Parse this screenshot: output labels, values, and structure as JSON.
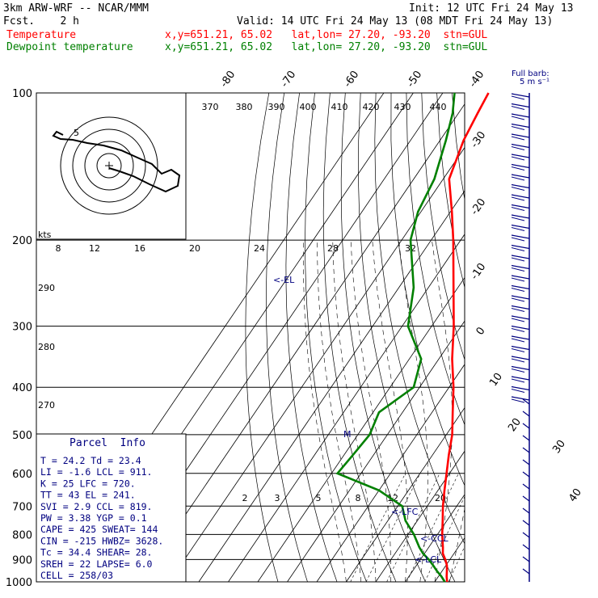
{
  "header": {
    "model": "3km ARW-WRF -- NCAR/MMM",
    "init": "Init: 12 UTC Fri 24 May 13",
    "fcst": "Fcst.    2 h",
    "valid": "Valid: 14 UTC Fri 24 May 13 (08 MDT Fri 24 May 13)",
    "temp_label": "Temperature",
    "temp_info": "x,y=651.21, 65.02   lat,lon= 27.20, -93.20  stn=GUL",
    "dew_label": "Dewpoint temperature",
    "dew_info": "x,y=651.21, 65.02   lat,lon= 27.20, -93.20  stn=GUL"
  },
  "colors": {
    "temperature": "#ff0000",
    "dewpoint": "#008000",
    "panel": "#000080",
    "barb": "#000080"
  },
  "barb_legend": {
    "line1": "Full barb:",
    "line2": "5 m s⁻¹"
  },
  "hodo_kts": "kts",
  "hodo_ring_label": "5",
  "parcel": {
    "title": "Parcel  Info",
    "rows": [
      "T  =   24.2  Td =  23.4",
      "LI =   -1.6  LCL =  911.",
      "K  =     25  LFC =  720.",
      "TT =     43  EL  =  241.",
      "SVI =   2.9  CCL =  819.",
      "PW =   3.38  YGP =   0.1",
      "CAPE =  425  SWEAT=   144",
      "CIN =  -215  HWBZ= 3628.",
      "Tc =   34.4  SHEAR=  28.",
      "SREH =   22  LAPSE=  6.0",
      "CELL = 258/03"
    ]
  },
  "levels": {
    "EL": "<-EL",
    "M": "M",
    "LFC": "<-LFC",
    "CCL": "<-CCL",
    "LCL": "<-LCL"
  },
  "chart_data": {
    "type": "line",
    "title": "",
    "pressure_ticks": [
      "100",
      "200",
      "300",
      "400",
      "500",
      "600",
      "700",
      "800",
      "900",
      "1000"
    ],
    "isotherm_labels": [
      "-80",
      "-70",
      "-60",
      "-50",
      "-40",
      "-30",
      "-20",
      "-10",
      "0",
      "10",
      "20",
      "30",
      "40"
    ],
    "theta_labels": [
      "370",
      "380",
      "390",
      "400",
      "410",
      "420",
      "430",
      "440"
    ],
    "dry_adiabat_labels": [
      "290",
      "280",
      "270"
    ],
    "mixing_ratio_upper": [
      "8",
      "12",
      "16",
      "20",
      "24",
      "28",
      "32"
    ],
    "mixing_ratio_lower": [
      "2",
      "3",
      "5",
      "8",
      "12",
      "20"
    ],
    "series": [
      {
        "name": "Temperature",
        "p": [
          1000,
          975,
          950,
          925,
          900,
          875,
          850,
          800,
          750,
          700,
          650,
          600,
          550,
          500,
          450,
          400,
          350,
          300,
          250,
          200,
          175,
          150,
          125,
          110,
          100
        ],
        "t": [
          24.2,
          22.8,
          21.6,
          20.3,
          18.4,
          16.2,
          14.8,
          11.6,
          8.6,
          5.3,
          2.2,
          -1.0,
          -4.5,
          -8.0,
          -13.0,
          -18.5,
          -25.5,
          -32.5,
          -41.5,
          -52.5,
          -59.5,
          -68.0,
          -72.0,
          -73.5,
          -74.5
        ]
      },
      {
        "name": "Dewpoint temperature",
        "p": [
          1000,
          975,
          950,
          925,
          900,
          875,
          850,
          800,
          750,
          700,
          650,
          600,
          550,
          500,
          450,
          400,
          350,
          300,
          250,
          200,
          175,
          150,
          125,
          110,
          100
        ],
        "t": [
          23.4,
          21.0,
          18.2,
          15.6,
          12.8,
          9.5,
          6.8,
          2.0,
          -4.0,
          -8.5,
          -20.0,
          -38.0,
          -37.0,
          -36.0,
          -38.0,
          -32.0,
          -36.0,
          -48.0,
          -55.0,
          -67.0,
          -71.0,
          -73.0,
          -78.0,
          -82.0,
          -86.0
        ]
      }
    ]
  }
}
